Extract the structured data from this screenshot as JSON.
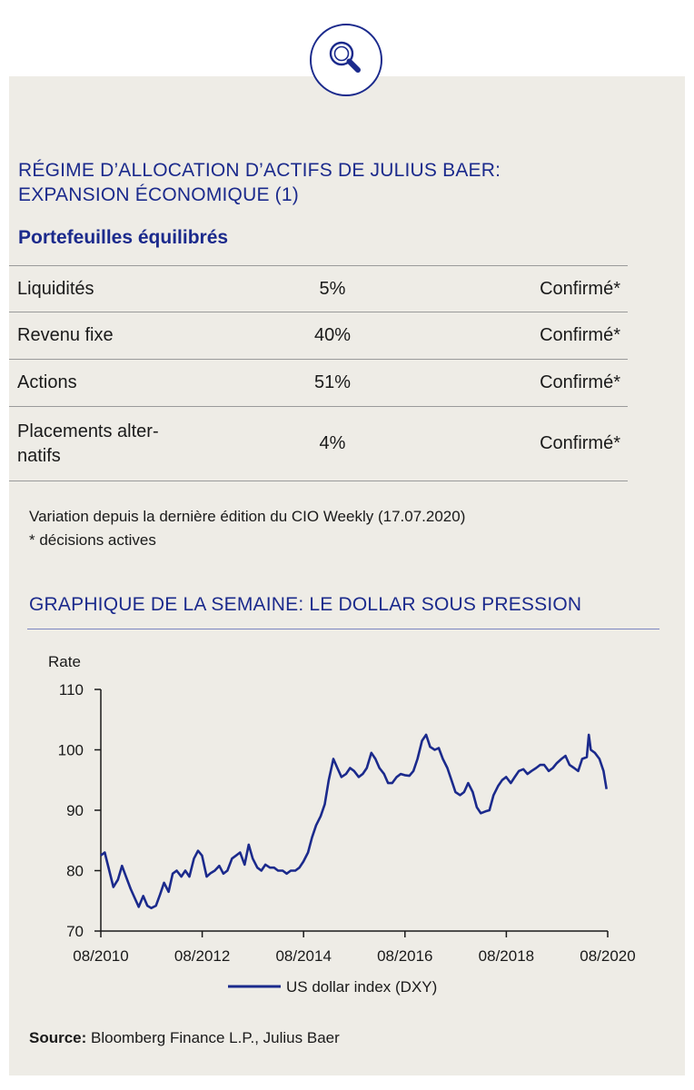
{
  "header": {
    "icon": "magnifier-icon"
  },
  "allocation": {
    "title_line1": "RÉGIME D’ALLOCATION D’ACTIFS DE JULIUS BAER:",
    "title_line2": "EXPANSION ÉCONOMIQUE (1)",
    "subtitle": "Portefeuilles équilibrés",
    "rows": [
      {
        "asset": "Liquidités",
        "weight": "5%",
        "decision": "Confirmé*"
      },
      {
        "asset": "Revenu fixe",
        "weight": "40%",
        "decision": "Confirmé*"
      },
      {
        "asset": "Actions",
        "weight": "51%",
        "decision": "Confirmé*"
      },
      {
        "asset_line1": "Placements alter-",
        "asset_line2": "natifs",
        "weight": "4%",
        "decision": "Confirmé*"
      }
    ],
    "note_line1": "Variation depuis la dernière édition du CIO Weekly (17.07.2020)",
    "note_line2": "* décisions actives"
  },
  "chart_section": {
    "title": "GRAPHIQUE DE LA SEMAINE: LE DOLLAR SOUS PRESSION"
  },
  "chart_data": {
    "type": "line",
    "ylabel": "Rate",
    "ylim": [
      70,
      110
    ],
    "yticks": [
      "70",
      "80",
      "90",
      "100",
      "110"
    ],
    "xlim": [
      2010.583,
      2020.583
    ],
    "xticks": [
      {
        "t": 2010.583,
        "label": "08/2010"
      },
      {
        "t": 2012.583,
        "label": "08/2012"
      },
      {
        "t": 2014.583,
        "label": "08/2014"
      },
      {
        "t": 2016.583,
        "label": "08/2016"
      },
      {
        "t": 2018.583,
        "label": "08/2018"
      },
      {
        "t": 2020.583,
        "label": "08/2020"
      }
    ],
    "series": [
      {
        "name": "US dollar index (DXY)",
        "color": "#1b2a8c",
        "points": [
          [
            2010.58,
            82.5
          ],
          [
            2010.66,
            83.0
          ],
          [
            2010.75,
            80.0
          ],
          [
            2010.83,
            77.3
          ],
          [
            2010.92,
            78.5
          ],
          [
            2011.0,
            80.8
          ],
          [
            2011.08,
            79.0
          ],
          [
            2011.17,
            77.0
          ],
          [
            2011.25,
            75.5
          ],
          [
            2011.33,
            74.0
          ],
          [
            2011.42,
            75.8
          ],
          [
            2011.5,
            74.2
          ],
          [
            2011.58,
            73.8
          ],
          [
            2011.67,
            74.2
          ],
          [
            2011.75,
            76.0
          ],
          [
            2011.83,
            78.0
          ],
          [
            2011.92,
            76.5
          ],
          [
            2012.0,
            79.5
          ],
          [
            2012.08,
            80.0
          ],
          [
            2012.17,
            79.0
          ],
          [
            2012.25,
            80.0
          ],
          [
            2012.33,
            79.0
          ],
          [
            2012.42,
            82.0
          ],
          [
            2012.5,
            83.3
          ],
          [
            2012.58,
            82.5
          ],
          [
            2012.67,
            79.0
          ],
          [
            2012.75,
            79.6
          ],
          [
            2012.83,
            80.0
          ],
          [
            2012.92,
            80.8
          ],
          [
            2013.0,
            79.5
          ],
          [
            2013.08,
            80.0
          ],
          [
            2013.17,
            82.0
          ],
          [
            2013.25,
            82.5
          ],
          [
            2013.33,
            83.0
          ],
          [
            2013.42,
            81.0
          ],
          [
            2013.5,
            84.3
          ],
          [
            2013.58,
            82.0
          ],
          [
            2013.67,
            80.5
          ],
          [
            2013.75,
            80.0
          ],
          [
            2013.83,
            81.0
          ],
          [
            2013.92,
            80.5
          ],
          [
            2014.0,
            80.5
          ],
          [
            2014.08,
            80.0
          ],
          [
            2014.17,
            80.0
          ],
          [
            2014.25,
            79.5
          ],
          [
            2014.33,
            80.0
          ],
          [
            2014.42,
            80.0
          ],
          [
            2014.5,
            80.5
          ],
          [
            2014.58,
            81.5
          ],
          [
            2014.67,
            83.0
          ],
          [
            2014.75,
            85.5
          ],
          [
            2014.83,
            87.5
          ],
          [
            2014.92,
            89.0
          ],
          [
            2015.0,
            91.0
          ],
          [
            2015.08,
            95.0
          ],
          [
            2015.17,
            98.5
          ],
          [
            2015.25,
            97.0
          ],
          [
            2015.33,
            95.5
          ],
          [
            2015.42,
            96.0
          ],
          [
            2015.5,
            97.0
          ],
          [
            2015.58,
            96.5
          ],
          [
            2015.67,
            95.5
          ],
          [
            2015.75,
            96.0
          ],
          [
            2015.83,
            97.0
          ],
          [
            2015.92,
            99.5
          ],
          [
            2016.0,
            98.5
          ],
          [
            2016.08,
            97.0
          ],
          [
            2016.17,
            96.0
          ],
          [
            2016.25,
            94.5
          ],
          [
            2016.33,
            94.5
          ],
          [
            2016.42,
            95.5
          ],
          [
            2016.5,
            96.0
          ],
          [
            2016.58,
            95.8
          ],
          [
            2016.67,
            95.7
          ],
          [
            2016.75,
            96.5
          ],
          [
            2016.83,
            98.5
          ],
          [
            2016.92,
            101.5
          ],
          [
            2017.0,
            102.5
          ],
          [
            2017.08,
            100.5
          ],
          [
            2017.17,
            100.0
          ],
          [
            2017.25,
            100.3
          ],
          [
            2017.33,
            98.5
          ],
          [
            2017.42,
            97.0
          ],
          [
            2017.5,
            95.0
          ],
          [
            2017.58,
            93.0
          ],
          [
            2017.67,
            92.5
          ],
          [
            2017.75,
            93.0
          ],
          [
            2017.83,
            94.5
          ],
          [
            2017.92,
            93.0
          ],
          [
            2018.0,
            90.5
          ],
          [
            2018.08,
            89.5
          ],
          [
            2018.17,
            89.8
          ],
          [
            2018.25,
            90.0
          ],
          [
            2018.33,
            92.5
          ],
          [
            2018.42,
            94.0
          ],
          [
            2018.5,
            95.0
          ],
          [
            2018.58,
            95.5
          ],
          [
            2018.67,
            94.5
          ],
          [
            2018.75,
            95.5
          ],
          [
            2018.83,
            96.5
          ],
          [
            2018.92,
            96.8
          ],
          [
            2019.0,
            96.0
          ],
          [
            2019.08,
            96.5
          ],
          [
            2019.17,
            97.0
          ],
          [
            2019.25,
            97.5
          ],
          [
            2019.33,
            97.5
          ],
          [
            2019.42,
            96.5
          ],
          [
            2019.5,
            97.0
          ],
          [
            2019.58,
            97.8
          ],
          [
            2019.67,
            98.5
          ],
          [
            2019.75,
            99.0
          ],
          [
            2019.83,
            97.5
          ],
          [
            2019.92,
            97.0
          ],
          [
            2020.0,
            96.5
          ],
          [
            2020.08,
            98.5
          ],
          [
            2020.17,
            98.8
          ],
          [
            2020.21,
            102.5
          ],
          [
            2020.25,
            100.0
          ],
          [
            2020.33,
            99.5
          ],
          [
            2020.42,
            98.5
          ],
          [
            2020.5,
            96.5
          ],
          [
            2020.56,
            93.5
          ]
        ]
      }
    ],
    "legend": "bottom-center",
    "grid": false
  },
  "source": {
    "label": "Source:",
    "text": "Bloomberg Finance L.P., Julius Baer"
  }
}
